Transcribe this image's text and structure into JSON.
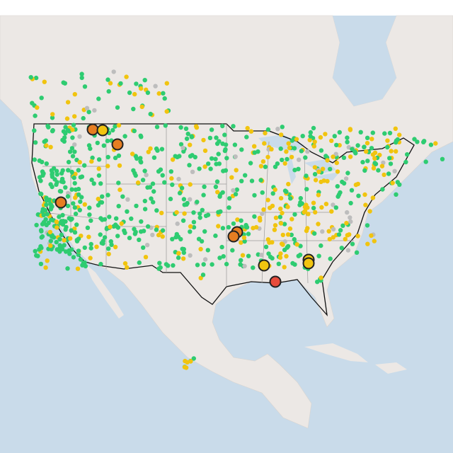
{
  "map": {
    "marker_levels": [
      {
        "color": "#2ecc71"
      },
      {
        "color": "#f1c40f"
      },
      {
        "color": "#e67e22"
      },
      {
        "color": "#e74c3c"
      },
      {
        "color": "#bdbdbd"
      }
    ]
  }
}
